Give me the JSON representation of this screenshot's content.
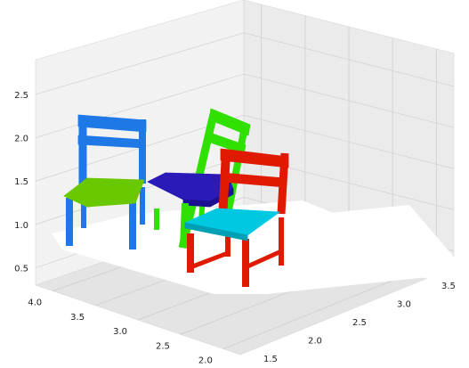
{
  "chart_data": {
    "type": "3d-voxel-scatter",
    "title": "",
    "xlabel": "",
    "ylabel": "",
    "zlabel": "",
    "grid": true,
    "axes": {
      "z": {
        "ticks": [
          "0.5",
          "1.0",
          "1.5",
          "2.0",
          "2.5"
        ],
        "range": [
          0.3,
          2.9
        ]
      },
      "y_left": {
        "ticks": [
          "2.0",
          "2.5",
          "3.0",
          "3.5",
          "4.0"
        ],
        "range": [
          1.8,
          4.2
        ]
      },
      "x_right": {
        "ticks": [
          "1.5",
          "2.0",
          "2.5",
          "3.0",
          "3.5"
        ],
        "range": [
          1.3,
          3.7
        ]
      }
    },
    "series": [
      {
        "object": "chair",
        "part": "frame",
        "color": "#1e78e6"
      },
      {
        "object": "chair",
        "part": "seat",
        "color": "#6ac800"
      },
      {
        "object": "chair",
        "part": "seat",
        "color": "#2a1ab8"
      },
      {
        "object": "chair",
        "part": "frame",
        "color": "#2fe000"
      },
      {
        "object": "chair",
        "part": "frame",
        "color": "#e01a00"
      },
      {
        "object": "chair",
        "part": "seat",
        "color": "#00c8e0"
      }
    ],
    "floor_color": "#ffffff"
  }
}
